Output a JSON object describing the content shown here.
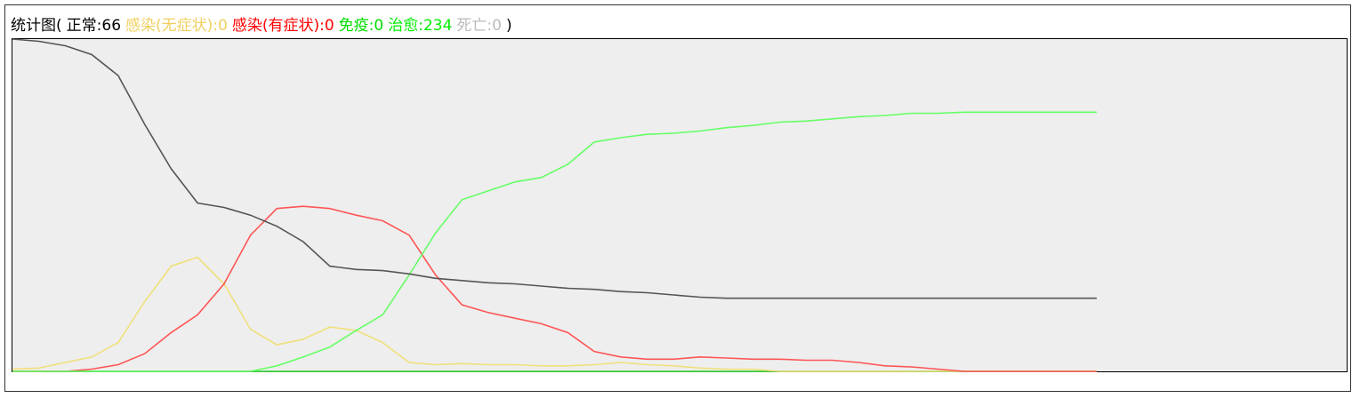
{
  "chart_data": {
    "type": "line",
    "title": "统计图(",
    "title_end": ")",
    "separator": ":",
    "ylim": [
      0,
      300
    ],
    "series": [
      {
        "name": "正常",
        "count": 66,
        "color": "#555555",
        "text_color": "#000000",
        "values": [
          300,
          298,
          294,
          286,
          267,
          223,
          183,
          152,
          148,
          141,
          131,
          117,
          95,
          92,
          91,
          88,
          84,
          82,
          80,
          79,
          77,
          75,
          74,
          72,
          71,
          69,
          67,
          66,
          66,
          66,
          66,
          66,
          66,
          66,
          66,
          66,
          66,
          66,
          66,
          66,
          66,
          66
        ]
      },
      {
        "name": "感染(无症状)",
        "count": 0,
        "color": "#f0e07a",
        "text_color": "#f0d060",
        "values": [
          2,
          3,
          8,
          13,
          26,
          63,
          95,
          103,
          79,
          38,
          24,
          29,
          40,
          37,
          26,
          8,
          6,
          7,
          6,
          6,
          5,
          5,
          6,
          8,
          6,
          5,
          3,
          2,
          2,
          0,
          0,
          0,
          0,
          0,
          0,
          0,
          0,
          0,
          0,
          0,
          0,
          0
        ]
      },
      {
        "name": "感染(有症状)",
        "count": 0,
        "color": "#ff5555",
        "text_color": "#ff0000",
        "values": [
          0,
          0,
          0,
          2,
          6,
          16,
          35,
          51,
          79,
          123,
          147,
          149,
          147,
          141,
          136,
          123,
          87,
          60,
          53,
          48,
          43,
          35,
          18,
          13,
          11,
          11,
          13,
          12,
          11,
          11,
          10,
          10,
          8,
          5,
          4,
          2,
          0,
          0,
          0,
          0,
          0,
          0
        ]
      },
      {
        "name": "免疫",
        "count": 0,
        "color": "#33dd33",
        "text_color": "#00dd00",
        "values": [
          0,
          0,
          0,
          0,
          0,
          0,
          0,
          0,
          0,
          0,
          0,
          0,
          0,
          0,
          0,
          0,
          0,
          0,
          0,
          0,
          0,
          0,
          0,
          0,
          0,
          0,
          0,
          0,
          0,
          0,
          0,
          0,
          0,
          0,
          0,
          0,
          0,
          0,
          0,
          0,
          0,
          0
        ]
      },
      {
        "name": "治愈",
        "count": 234,
        "color": "#66ff66",
        "text_color": "#00ee00",
        "values": [
          0,
          0,
          0,
          0,
          0,
          0,
          0,
          0,
          0,
          0,
          5,
          13,
          22,
          37,
          51,
          87,
          125,
          155,
          163,
          171,
          175,
          187,
          207,
          211,
          214,
          215,
          217,
          220,
          222,
          225,
          226,
          228,
          230,
          231,
          233,
          233,
          234,
          234,
          234,
          234,
          234,
          234
        ]
      },
      {
        "name": "死亡",
        "count": 0,
        "color": "#cccccc",
        "text_color": "#bbbbbb",
        "values": [
          0,
          0,
          0,
          0,
          0,
          0,
          0,
          0,
          0,
          0,
          0,
          0,
          0,
          0,
          0,
          0,
          0,
          0,
          0,
          0,
          0,
          0,
          0,
          0,
          0,
          0,
          0,
          0,
          0,
          0,
          0,
          0,
          0,
          0,
          0,
          0,
          0,
          0,
          0,
          0,
          0,
          0
        ]
      }
    ]
  }
}
